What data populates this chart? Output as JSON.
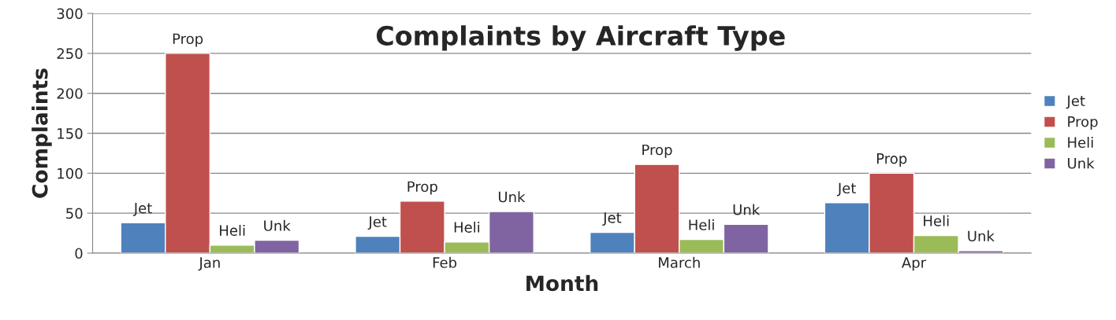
{
  "chart_data": {
    "type": "bar",
    "title": "Complaints by Aircraft Type",
    "xlabel": "Month",
    "ylabel": "Complaints",
    "categories": [
      "Jan",
      "Feb",
      "March",
      "Apr"
    ],
    "series": [
      {
        "name": "Jet",
        "color": "#4f81bd",
        "values": [
          38,
          21,
          26,
          63
        ],
        "value_labels": [
          "Jet",
          "Jet",
          "Jet",
          "Jet"
        ]
      },
      {
        "name": "Prop",
        "color": "#c0504d",
        "values": [
          250,
          65,
          111,
          100
        ],
        "value_labels": [
          "Prop",
          "Prop",
          "Prop",
          "Prop"
        ]
      },
      {
        "name": "Heli",
        "color": "#9bbb59",
        "values": [
          10,
          14,
          17,
          22
        ],
        "value_labels": [
          "Heli",
          "Heli",
          "Heli",
          "Heli"
        ]
      },
      {
        "name": "Unk",
        "color": "#8064a2",
        "values": [
          16,
          52,
          36,
          3
        ],
        "value_labels": [
          "Unk",
          "Unk",
          "Unk",
          "Unk"
        ]
      }
    ],
    "ylim": [
      0,
      300
    ],
    "yticks": [
      0,
      50,
      100,
      150,
      200,
      250,
      300
    ],
    "grid": "y",
    "legend": "right"
  }
}
